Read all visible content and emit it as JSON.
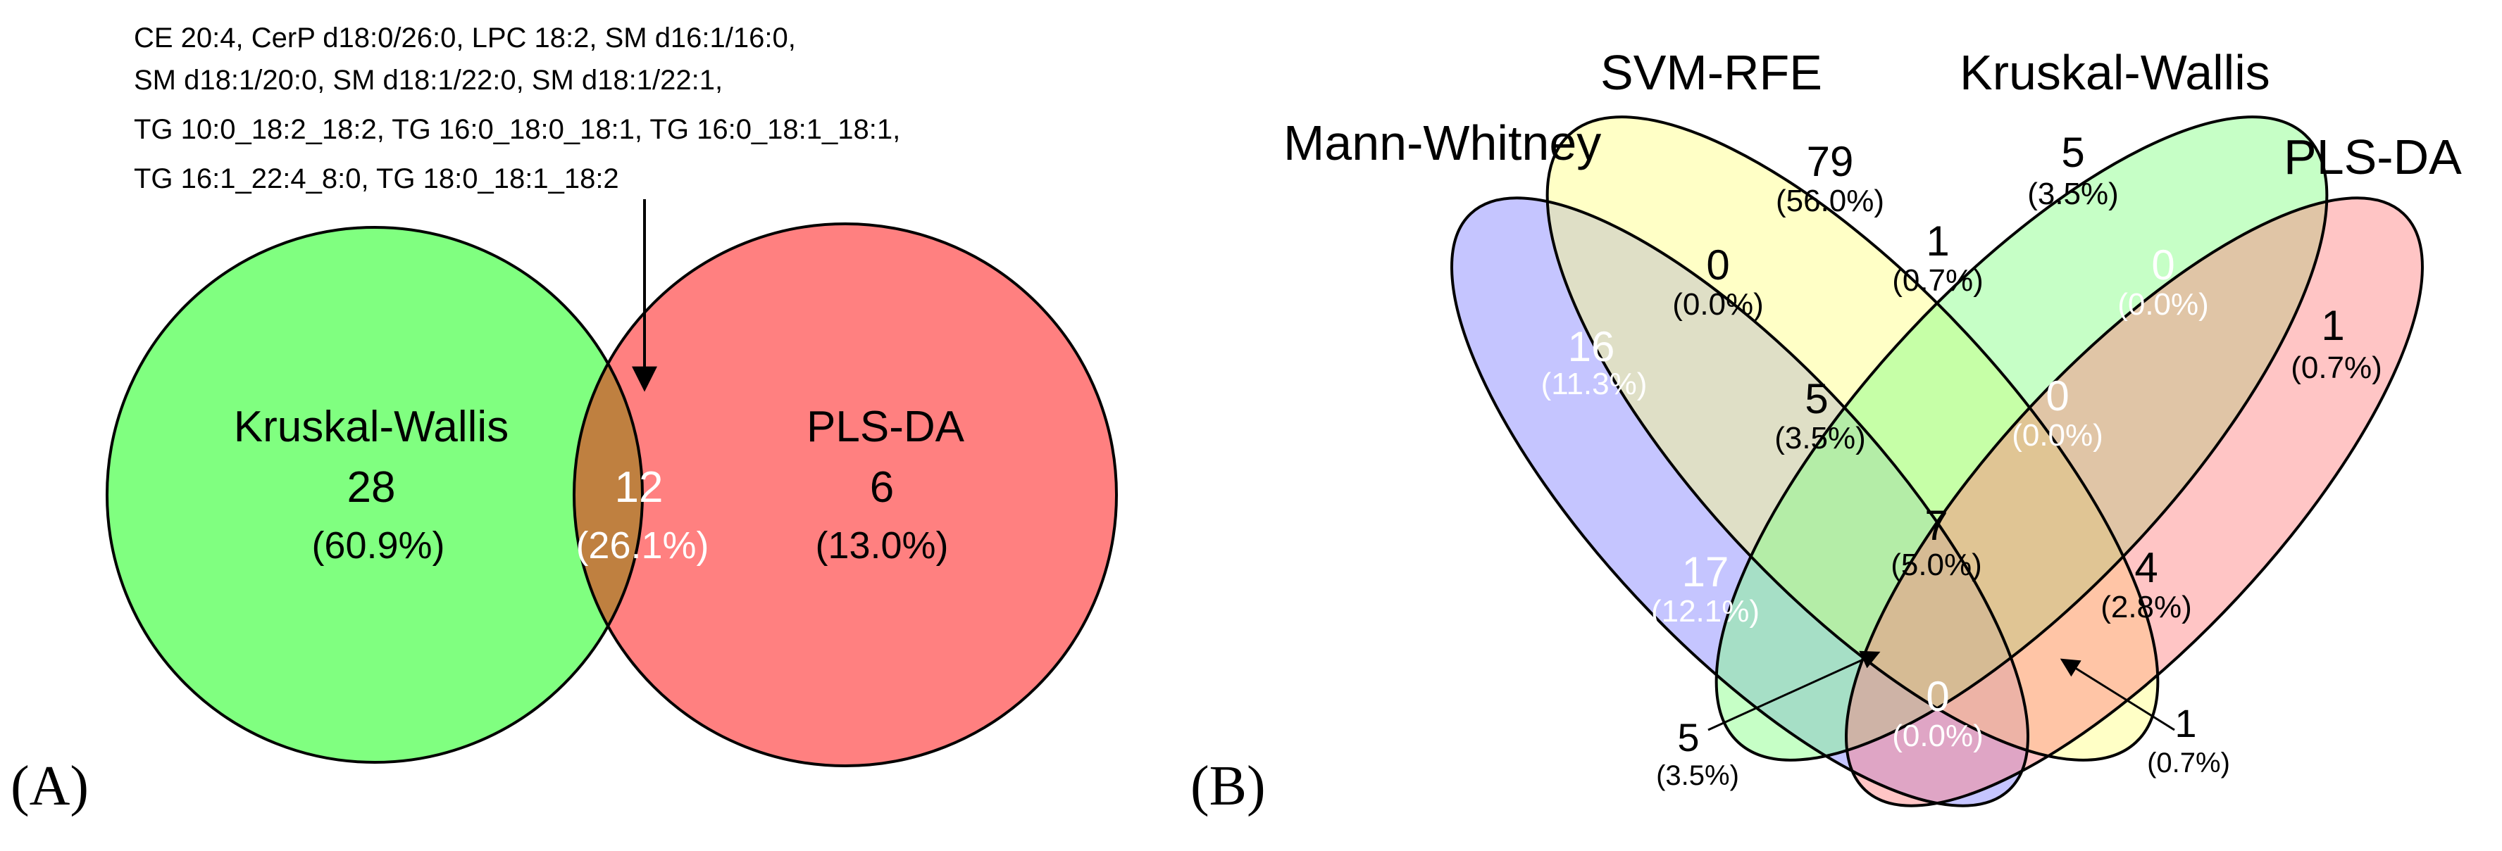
{
  "panel_a": {
    "label": "(A)",
    "annotation_lines": [
      "CE 20:4, CerP d18:0/26:0, LPC 18:2, SM d16:1/16:0,",
      "SM d18:1/20:0, SM d18:1/22:0, SM d18:1/22:1,",
      "TG 10:0_18:2_18:2, TG 16:0_18:0_18:1, TG 16:0_18:1_18:1,",
      "TG 16:1_22:4_8:0, TG 18:0_18:1_18:2"
    ],
    "sets": {
      "kruskal_wallis": {
        "name": "Kruskal-Wallis",
        "count": "28",
        "percent": "(60.9%)"
      },
      "pls_da": {
        "name": "PLS-DA",
        "count": "6",
        "percent": "(13.0%)"
      },
      "intersection": {
        "count": "12",
        "percent": "(26.1%)"
      }
    },
    "colors": {
      "kruskal_wallis": "#80ff80",
      "pls_da": "#ff8080",
      "intersection": "#bf8040"
    }
  },
  "panel_b": {
    "label": "(B)",
    "set_names": {
      "mann_whitney": "Mann-Whitney",
      "svm_rfe": "SVM-RFE",
      "kruskal_wallis": "Kruskal-Wallis",
      "pls_da": "PLS-DA"
    },
    "colors": {
      "mann_whitney": "#7f7fff",
      "svm_rfe": "#ffff80",
      "kruskal_wallis": "#80ff80",
      "pls_da": "#ff7f7f"
    },
    "regions": {
      "svm_only": {
        "count": "79",
        "percent": "(56.0%)"
      },
      "kw_only": {
        "count": "5",
        "percent": "(3.5%)"
      },
      "mw_only": {
        "count": "16",
        "percent": "(11.3%)"
      },
      "pls_only": {
        "count": "1",
        "percent": "(0.7%)"
      },
      "mw_svm": {
        "count": "0",
        "percent": "(0.0%)"
      },
      "svm_kw": {
        "count": "1",
        "percent": "(0.7%)"
      },
      "kw_pls": {
        "count": "0",
        "percent": "(0.0%)"
      },
      "mw_svm_kw": {
        "count": "5",
        "percent": "(3.5%)"
      },
      "svm_kw_pls": {
        "count": "0",
        "percent": "(0.0%)"
      },
      "all_four": {
        "count": "7",
        "percent": "(5.0%)"
      },
      "mw_kw": {
        "count": "17",
        "percent": "(12.1%)"
      },
      "svm_pls": {
        "count": "4",
        "percent": "(2.8%)"
      },
      "mw_pls": {
        "count": "0",
        "percent": "(0.0%)"
      },
      "mw_kw_pls": {
        "count": "5",
        "percent": "(3.5%)"
      },
      "mw_svm_pls": {
        "count": "1",
        "percent": "(0.7%)"
      }
    }
  }
}
